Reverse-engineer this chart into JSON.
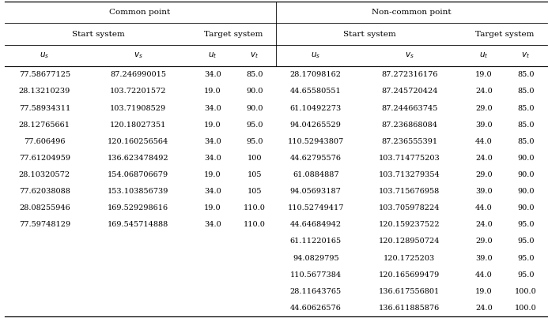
{
  "common_data": [
    [
      "77.58677125",
      "87.246990015",
      "34.0",
      "85.0"
    ],
    [
      "28.13210239",
      "103.72201572",
      "19.0",
      "90.0"
    ],
    [
      "77.58934311",
      "103.71908529",
      "34.0",
      "90.0"
    ],
    [
      "28.12765661",
      "120.18027351",
      "19.0",
      "95.0"
    ],
    [
      "77.606496",
      "120.160256564",
      "34.0",
      "95.0"
    ],
    [
      "77.61204959",
      "136.623478492",
      "34.0",
      "100"
    ],
    [
      "28.10320572",
      "154.068706679",
      "19.0",
      "105"
    ],
    [
      "77.62038088",
      "153.103856739",
      "34.0",
      "105"
    ],
    [
      "28.08255946",
      "169.529298616",
      "19.0",
      "110.0"
    ],
    [
      "77.59748129",
      "169.545714888",
      "34.0",
      "110.0"
    ]
  ],
  "noncommon_data": [
    [
      "28.17098162",
      "87.272316176",
      "19.0",
      "85.0"
    ],
    [
      "44.65580551",
      "87.245720424",
      "24.0",
      "85.0"
    ],
    [
      "61.10492273",
      "87.244663745",
      "29.0",
      "85.0"
    ],
    [
      "94.04265529",
      "87.236868084",
      "39.0",
      "85.0"
    ],
    [
      "110.52943807",
      "87.236555391",
      "44.0",
      "85.0"
    ],
    [
      "44.62795576",
      "103.714775203",
      "24.0",
      "90.0"
    ],
    [
      "61.0884887",
      "103.713279354",
      "29.0",
      "90.0"
    ],
    [
      "94.05693187",
      "103.715676958",
      "39.0",
      "90.0"
    ],
    [
      "110.52749417",
      "103.705978224",
      "44.0",
      "90.0"
    ],
    [
      "44.64684942",
      "120.159237522",
      "24.0",
      "95.0"
    ],
    [
      "61.11220165",
      "120.128950724",
      "29.0",
      "95.0"
    ],
    [
      "94.0829795",
      "120.1725203",
      "39.0",
      "95.0"
    ],
    [
      "110.5677384",
      "120.165699479",
      "44.0",
      "95.0"
    ],
    [
      "28.11643765",
      "136.617556801",
      "19.0",
      "100.0"
    ],
    [
      "44.60626576",
      "136.611885876",
      "24.0",
      "100.0"
    ]
  ],
  "header_fontsize": 7.5,
  "data_fontsize": 7.0,
  "col_header_fontsize": 7.5
}
